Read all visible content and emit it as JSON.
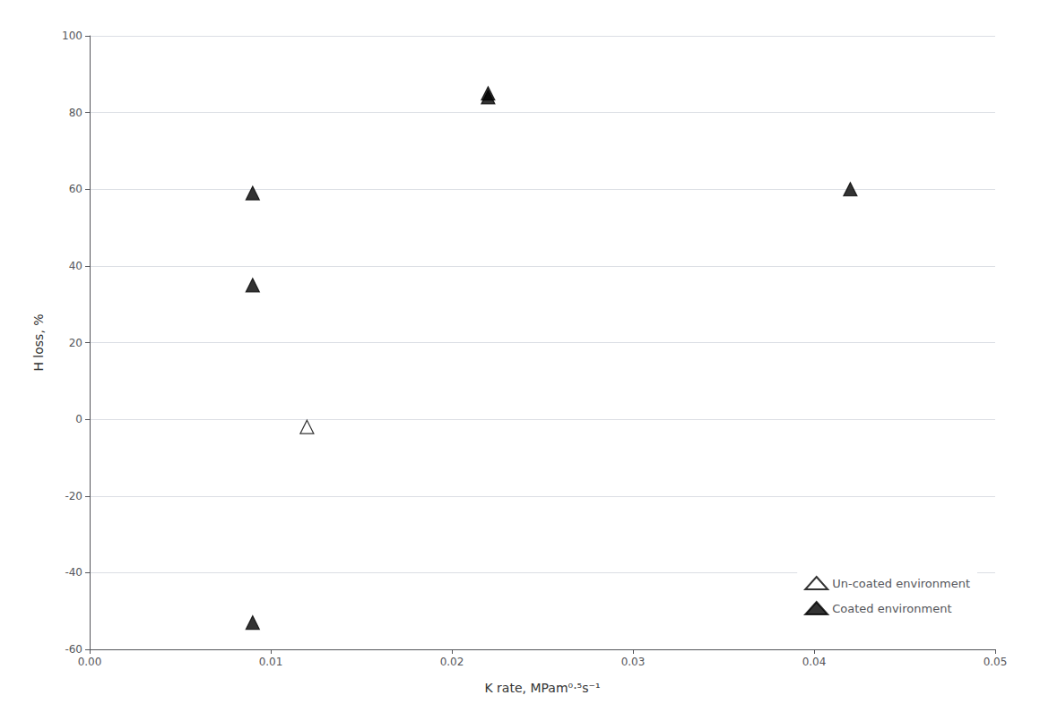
{
  "chart_data": {
    "type": "scatter",
    "xlabel": "K rate, MPam⁰·⁵s⁻¹",
    "ylabel": "H loss, %",
    "series": [
      {
        "name": "Un-coated environment",
        "marker": "triangle-open",
        "color": "#000000",
        "x": [
          0.012
        ],
        "values": [
          -2.0
        ]
      },
      {
        "name": "Coated environment",
        "marker": "triangle",
        "color": "#000000",
        "x": [
          0.009,
          0.009,
          0.022,
          0.022,
          0.042,
          0.009
        ],
        "values": [
          59,
          35,
          85,
          84,
          60,
          -53
        ]
      }
    ],
    "xlim": [
      0.0,
      0.05
    ],
    "ylim": [
      -60,
      100
    ],
    "xticks": [
      {
        "value": 0.0,
        "label": "0.00"
      },
      0.01,
      0.02,
      0.03,
      0.04,
      0.05
    ],
    "yticks": [
      -60,
      -40,
      -20,
      0,
      20,
      40,
      60,
      80,
      100
    ],
    "grid": "y",
    "legend": "lower right"
  }
}
